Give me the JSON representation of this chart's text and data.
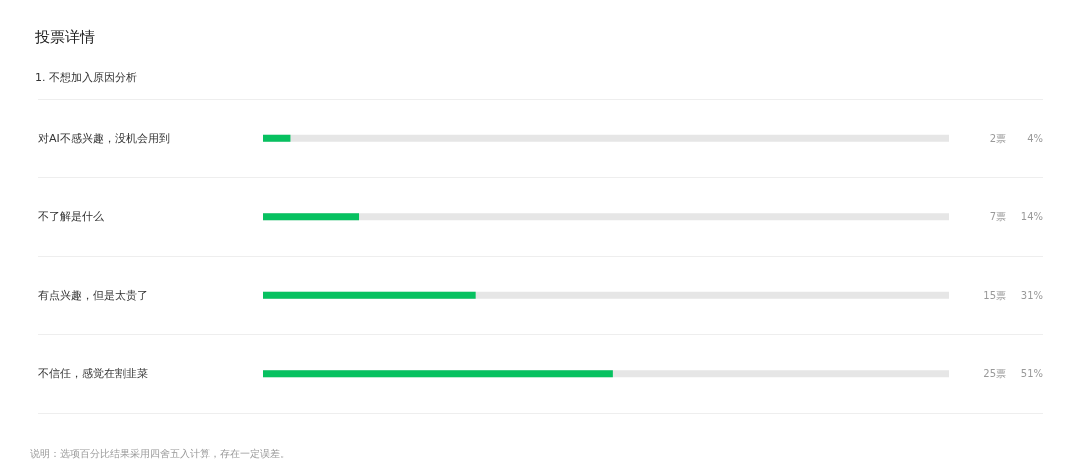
{
  "chart_data": {
    "type": "bar",
    "orientation": "horizontal",
    "title": "投票详情",
    "subtitle": "1. 不想加入原因分析",
    "categories": [
      "对AI不感兴趣，没机会用到",
      "不了解是什么",
      "有点兴趣，但是太贵了",
      "不信任，感觉在割韭菜"
    ],
    "values": [
      4,
      14,
      31,
      51
    ],
    "value_labels": [
      "4%",
      "14%",
      "31%",
      "51%"
    ],
    "color": "#07c160",
    "xlim": [
      0,
      100
    ],
    "tick_labels": "y",
    "grid": "y",
    "annotations": [
      "2票",
      "7票",
      "15票",
      "25票",
      "说明：选项百分比结果采用四舍五入计算，存在一定误差。"
    ]
  }
}
